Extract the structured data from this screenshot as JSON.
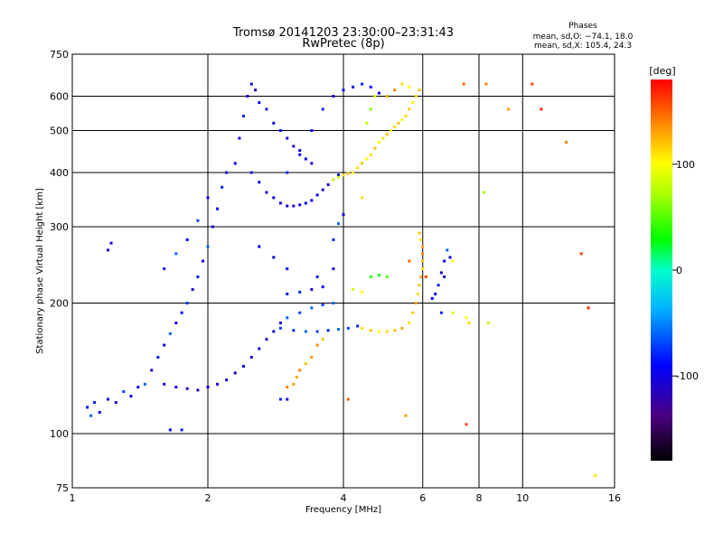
{
  "chart_data": {
    "type": "scatter",
    "title": "Tromsø 20141203 23:30:00–23:31:43",
    "subtitle": "RwPretec (8p)",
    "xlabel": "Frequency [MHz]",
    "ylabel": "Stationary phase Virtual Height [km]",
    "x_scale": "log",
    "y_scale": "log",
    "xlim": [
      1,
      16
    ],
    "ylim": [
      75,
      750
    ],
    "x_ticks": [
      1,
      2,
      4,
      6,
      8,
      10,
      16
    ],
    "y_ticks": [
      75,
      100,
      200,
      300,
      400,
      500,
      600,
      750
    ],
    "grid": true,
    "legend": {
      "title": "Phases",
      "lines": [
        "mean, sd,O: −74.1, 18.0",
        "mean, sd,X: 105.4, 24.3"
      ],
      "position": "top-right"
    },
    "colorbar": {
      "label": "[deg]",
      "min": -180,
      "max": 180,
      "ticks": [
        100,
        0,
        -100
      ],
      "colormap": "rainbow"
    },
    "series": [
      {
        "points": [
          [
            1.08,
            115,
            -95
          ],
          [
            1.1,
            110,
            -60
          ],
          [
            1.12,
            118,
            -80
          ],
          [
            1.15,
            112,
            -100
          ],
          [
            1.2,
            120,
            -90
          ],
          [
            1.25,
            118,
            -110
          ],
          [
            1.3,
            125,
            -70
          ],
          [
            1.35,
            122,
            -100
          ],
          [
            1.4,
            128,
            -90
          ],
          [
            1.45,
            130,
            -60
          ],
          [
            1.5,
            140,
            -110
          ],
          [
            1.55,
            150,
            -80
          ],
          [
            1.6,
            160,
            -95
          ],
          [
            1.65,
            170,
            -60
          ],
          [
            1.7,
            180,
            -100
          ],
          [
            1.75,
            190,
            -90
          ],
          [
            1.8,
            200,
            -70
          ],
          [
            1.85,
            215,
            -100
          ],
          [
            1.9,
            230,
            -80
          ],
          [
            1.95,
            250,
            -95
          ],
          [
            2.0,
            270,
            -60
          ],
          [
            2.05,
            300,
            -100
          ],
          [
            2.1,
            330,
            -90
          ],
          [
            2.15,
            370,
            -80
          ],
          [
            2.2,
            400,
            -100
          ],
          [
            1.6,
            130,
            -110
          ],
          [
            1.7,
            128,
            -100
          ],
          [
            1.8,
            127,
            -105
          ],
          [
            1.9,
            126,
            -110
          ],
          [
            2.0,
            128,
            -100
          ],
          [
            2.1,
            130,
            -110
          ],
          [
            2.2,
            133,
            -100
          ],
          [
            2.3,
            138,
            -110
          ],
          [
            2.4,
            143,
            -100
          ],
          [
            2.5,
            150,
            -110
          ],
          [
            2.6,
            157,
            -100
          ],
          [
            2.7,
            165,
            -110
          ],
          [
            2.8,
            172,
            -100
          ],
          [
            2.9,
            180,
            -105
          ],
          [
            1.6,
            240,
            -80
          ],
          [
            1.7,
            260,
            -60
          ],
          [
            1.8,
            280,
            -90
          ],
          [
            1.9,
            310,
            -70
          ],
          [
            2.0,
            350,
            -100
          ],
          [
            1.2,
            265,
            -110
          ],
          [
            1.22,
            275,
            -100
          ],
          [
            1.65,
            102,
            -90
          ],
          [
            1.75,
            102,
            -80
          ],
          [
            2.3,
            420,
            -90
          ],
          [
            2.35,
            480,
            -100
          ],
          [
            2.4,
            540,
            -80
          ],
          [
            2.45,
            600,
            -100
          ],
          [
            2.5,
            640,
            -90
          ],
          [
            2.55,
            620,
            -110
          ],
          [
            2.6,
            580,
            -100
          ],
          [
            2.7,
            560,
            -80
          ],
          [
            2.8,
            520,
            -100
          ],
          [
            2.9,
            500,
            -90
          ],
          [
            3.0,
            480,
            -100
          ],
          [
            3.1,
            460,
            -110
          ],
          [
            3.2,
            440,
            -100
          ],
          [
            3.3,
            430,
            -90
          ],
          [
            3.4,
            420,
            -100
          ],
          [
            2.5,
            400,
            -80
          ],
          [
            2.6,
            380,
            -100
          ],
          [
            2.7,
            360,
            -110
          ],
          [
            2.8,
            350,
            -100
          ],
          [
            2.9,
            340,
            -90
          ],
          [
            3.0,
            335,
            -100
          ],
          [
            3.1,
            335,
            -110
          ],
          [
            3.2,
            337,
            -100
          ],
          [
            3.3,
            340,
            -90
          ],
          [
            3.4,
            345,
            -100
          ],
          [
            3.5,
            355,
            -90
          ],
          [
            3.6,
            365,
            -100
          ],
          [
            3.7,
            375,
            -110
          ],
          [
            3.8,
            385,
            -100
          ],
          [
            3.9,
            395,
            -90
          ],
          [
            3.0,
            400,
            -80
          ],
          [
            3.2,
            450,
            -100
          ],
          [
            3.4,
            500,
            -90
          ],
          [
            3.6,
            560,
            -80
          ],
          [
            3.8,
            600,
            -100
          ],
          [
            4.0,
            620,
            -90
          ],
          [
            4.2,
            630,
            -100
          ],
          [
            4.4,
            640,
            -80
          ],
          [
            4.6,
            630,
            -90
          ],
          [
            4.8,
            610,
            -100
          ],
          [
            3.5,
            230,
            -80
          ],
          [
            3.8,
            240,
            -100
          ],
          [
            2.6,
            270,
            -90
          ],
          [
            2.8,
            255,
            -100
          ],
          [
            3.0,
            240,
            -90
          ],
          [
            2.9,
            175,
            -70
          ],
          [
            3.1,
            173,
            -80
          ],
          [
            3.3,
            172,
            -60
          ],
          [
            3.5,
            172,
            -70
          ],
          [
            3.7,
            173,
            -80
          ],
          [
            3.9,
            174,
            -60
          ],
          [
            4.1,
            175,
            -70
          ],
          [
            4.3,
            177,
            -80
          ],
          [
            3.0,
            185,
            -60
          ],
          [
            3.2,
            190,
            -70
          ],
          [
            3.4,
            195,
            -60
          ],
          [
            3.6,
            198,
            -70
          ],
          [
            3.8,
            200,
            -60
          ],
          [
            3.0,
            210,
            -90
          ],
          [
            3.2,
            212,
            -80
          ],
          [
            3.4,
            215,
            -100
          ],
          [
            3.6,
            218,
            -90
          ],
          [
            2.9,
            120,
            -80
          ],
          [
            3.0,
            120,
            -100
          ],
          [
            3.8,
            280,
            -80
          ],
          [
            3.9,
            305,
            -60
          ],
          [
            4.0,
            320,
            -100
          ],
          [
            6.3,
            205,
            -90
          ],
          [
            6.4,
            210,
            -100
          ],
          [
            6.5,
            220,
            -80
          ],
          [
            6.6,
            235,
            -100
          ],
          [
            6.7,
            250,
            -90
          ],
          [
            6.8,
            265,
            -60
          ],
          [
            6.9,
            255,
            -100
          ],
          [
            6.7,
            230,
            -110
          ],
          [
            6.6,
            190,
            -80
          ]
        ]
      },
      {
        "points": [
          [
            3.8,
            385,
            80
          ],
          [
            3.9,
            390,
            90
          ],
          [
            4.0,
            395,
            110
          ],
          [
            4.1,
            398,
            120
          ],
          [
            4.2,
            400,
            100
          ],
          [
            4.3,
            410,
            110
          ],
          [
            4.4,
            420,
            120
          ],
          [
            4.5,
            430,
            100
          ],
          [
            4.6,
            440,
            110
          ],
          [
            4.7,
            455,
            120
          ],
          [
            4.8,
            470,
            100
          ],
          [
            4.9,
            480,
            110
          ],
          [
            5.0,
            490,
            120
          ],
          [
            5.1,
            500,
            100
          ],
          [
            5.2,
            510,
            110
          ],
          [
            5.3,
            520,
            120
          ],
          [
            5.4,
            530,
            100
          ],
          [
            5.5,
            540,
            110
          ],
          [
            5.6,
            560,
            120
          ],
          [
            5.7,
            580,
            100
          ],
          [
            5.8,
            600,
            110
          ],
          [
            5.9,
            620,
            120
          ],
          [
            4.5,
            520,
            80
          ],
          [
            4.6,
            560,
            60
          ],
          [
            4.7,
            600,
            90
          ],
          [
            5.0,
            600,
            130
          ],
          [
            5.2,
            620,
            140
          ],
          [
            5.4,
            640,
            110
          ],
          [
            5.6,
            630,
            100
          ],
          [
            4.4,
            350,
            110
          ],
          [
            4.4,
            175,
            110
          ],
          [
            4.6,
            173,
            120
          ],
          [
            4.8,
            172,
            100
          ],
          [
            5.0,
            172,
            110
          ],
          [
            5.2,
            173,
            120
          ],
          [
            5.4,
            175,
            130
          ],
          [
            5.6,
            180,
            110
          ],
          [
            5.7,
            190,
            120
          ],
          [
            5.8,
            200,
            130
          ],
          [
            5.85,
            210,
            110
          ],
          [
            5.9,
            220,
            120
          ],
          [
            5.95,
            230,
            130
          ],
          [
            6.0,
            240,
            110
          ],
          [
            6.0,
            250,
            120
          ],
          [
            6.0,
            260,
            140
          ],
          [
            6.0,
            270,
            130
          ],
          [
            5.95,
            280,
            110
          ],
          [
            5.9,
            290,
            120
          ],
          [
            3.1,
            130,
            130
          ],
          [
            3.2,
            140,
            140
          ],
          [
            3.3,
            145,
            120
          ],
          [
            3.4,
            150,
            130
          ],
          [
            3.5,
            160,
            140
          ],
          [
            3.6,
            165,
            120
          ],
          [
            3.0,
            128,
            140
          ],
          [
            3.15,
            135,
            130
          ],
          [
            4.6,
            230,
            40
          ],
          [
            4.8,
            232,
            30
          ],
          [
            5.0,
            230,
            50
          ],
          [
            4.2,
            215,
            90
          ],
          [
            4.4,
            212,
            100
          ],
          [
            7.0,
            190,
            90
          ],
          [
            7.5,
            185,
            100
          ],
          [
            7.6,
            180,
            110
          ],
          [
            8.2,
            360,
            70
          ],
          [
            8.4,
            180,
            80
          ],
          [
            10.5,
            640,
            160
          ],
          [
            11.0,
            560,
            170
          ],
          [
            12.5,
            470,
            140
          ],
          [
            13.5,
            260,
            160
          ],
          [
            14.0,
            195,
            170
          ],
          [
            14.5,
            80,
            110
          ],
          [
            7.4,
            640,
            150
          ],
          [
            8.3,
            640,
            140
          ],
          [
            9.3,
            560,
            130
          ],
          [
            7.0,
            250,
            100
          ],
          [
            6.1,
            230,
            160
          ],
          [
            5.6,
            250,
            150
          ],
          [
            7.5,
            105,
            160
          ],
          [
            4.1,
            120,
            150
          ],
          [
            5.5,
            110,
            130
          ]
        ]
      }
    ]
  }
}
